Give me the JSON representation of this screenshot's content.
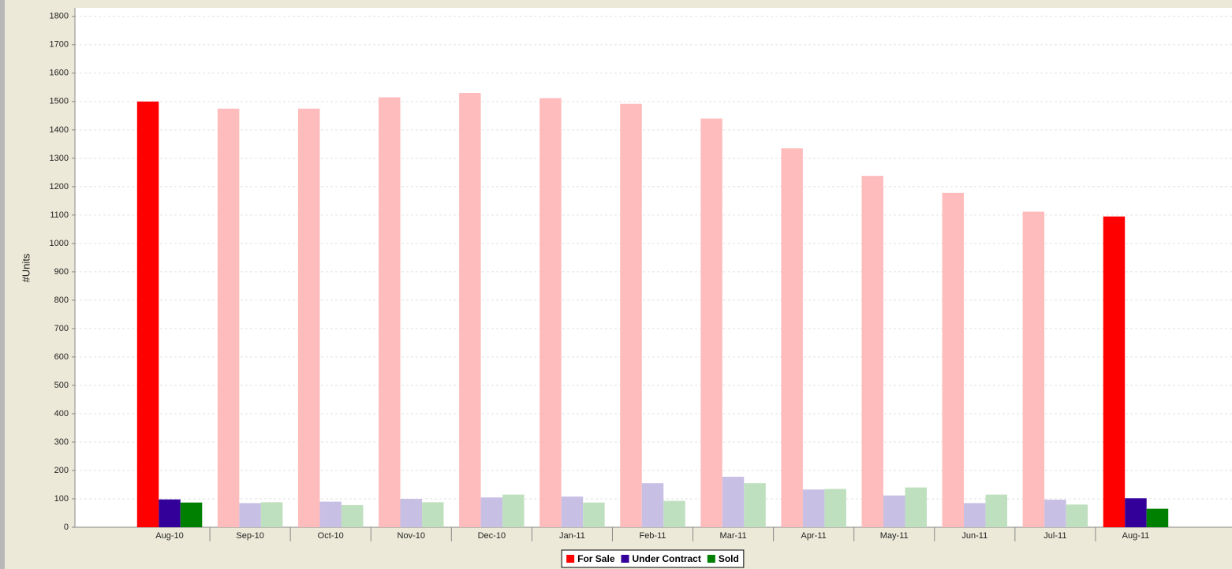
{
  "chart_data": {
    "type": "bar",
    "y_axis_label": "#Units",
    "categories": [
      "Aug-10",
      "Sep-10",
      "Oct-10",
      "Nov-10",
      "Dec-10",
      "Jan-11",
      "Feb-11",
      "Mar-11",
      "Apr-11",
      "May-11",
      "Jun-11",
      "Jul-11",
      "Aug-11"
    ],
    "series": [
      {
        "name": "For Sale",
        "color": "#ff0000",
        "faded_color": "#ffbcbc",
        "values": [
          1500,
          1475,
          1475,
          1515,
          1530,
          1512,
          1492,
          1440,
          1335,
          1238,
          1178,
          1112,
          1095
        ]
      },
      {
        "name": "Under Contract",
        "color": "#330099",
        "faded_color": "#c8bfe5",
        "values": [
          98,
          85,
          90,
          100,
          105,
          108,
          155,
          178,
          133,
          112,
          85,
          97,
          102
        ]
      },
      {
        "name": "Sold",
        "color": "#008000",
        "faded_color": "#bfe0bf",
        "values": [
          87,
          88,
          78,
          88,
          115,
          87,
          93,
          155,
          135,
          140,
          115,
          80,
          65
        ]
      }
    ],
    "highlight_categories": [
      0,
      12
    ],
    "ylim": [
      0,
      1830
    ],
    "yticks": [
      0,
      100,
      200,
      300,
      400,
      500,
      600,
      700,
      800,
      900,
      1000,
      1100,
      1200,
      1300,
      1400,
      1500,
      1600,
      1700,
      1800
    ],
    "grid": true,
    "legend": "bottom"
  }
}
